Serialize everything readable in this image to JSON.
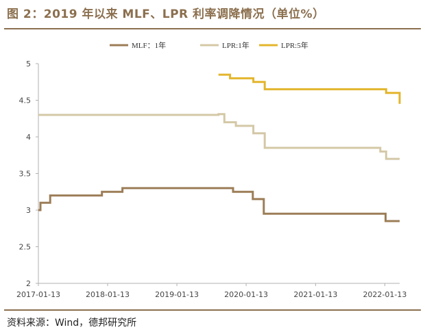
{
  "header": {
    "title": "图 2：2019 年以来 MLF、LPR 利率调降情况（单位%）"
  },
  "footer": {
    "source": "资料来源：Wind，德邦研究所"
  },
  "colors": {
    "title": "#8b6f4e",
    "mlf": "#9c7d57",
    "lpr1": "#d4c8a6",
    "lpr5": "#e3b52c",
    "axis": "#b0b0b0"
  },
  "chart_data": {
    "type": "line",
    "ylim": [
      2,
      5
    ],
    "yticks": [
      "2",
      "2.5",
      "3",
      "3.5",
      "4",
      "4.5",
      "5"
    ],
    "xlim": [
      "2017-01-13",
      "2022-04-01"
    ],
    "xticks": [
      "2017-01-13",
      "2018-01-13",
      "2019-01-13",
      "2020-01-13",
      "2021-01-13",
      "2022-01-13"
    ],
    "series": [
      {
        "name": "MLF：1年",
        "color": "#9c7d57",
        "points": [
          [
            "2017-01-13",
            3.0
          ],
          [
            "2017-01-24",
            3.1
          ],
          [
            "2017-03-16",
            3.2
          ],
          [
            "2017-12-14",
            3.25
          ],
          [
            "2018-04-01",
            3.3
          ],
          [
            "2019-11-05",
            3.25
          ],
          [
            "2020-02-17",
            3.15
          ],
          [
            "2020-04-15",
            2.95
          ],
          [
            "2022-01-17",
            2.85
          ],
          [
            "2022-04-01",
            2.85
          ]
        ]
      },
      {
        "name": "LPR:1年",
        "color": "#d4c8a6",
        "points": [
          [
            "2017-01-13",
            4.3
          ],
          [
            "2019-08-20",
            4.31
          ],
          [
            "2019-09-20",
            4.2
          ],
          [
            "2019-11-20",
            4.15
          ],
          [
            "2020-02-20",
            4.05
          ],
          [
            "2020-04-20",
            3.85
          ],
          [
            "2021-12-20",
            3.8
          ],
          [
            "2022-01-20",
            3.7
          ],
          [
            "2022-04-01",
            3.7
          ]
        ]
      },
      {
        "name": "LPR:5年",
        "color": "#e3b52c",
        "points": [
          [
            "2019-08-20",
            4.85
          ],
          [
            "2019-10-20",
            4.8
          ],
          [
            "2020-02-20",
            4.75
          ],
          [
            "2020-04-20",
            4.65
          ],
          [
            "2022-01-20",
            4.6
          ],
          [
            "2022-03-20",
            4.6
          ],
          [
            "2022-04-01",
            4.45
          ]
        ]
      }
    ]
  }
}
